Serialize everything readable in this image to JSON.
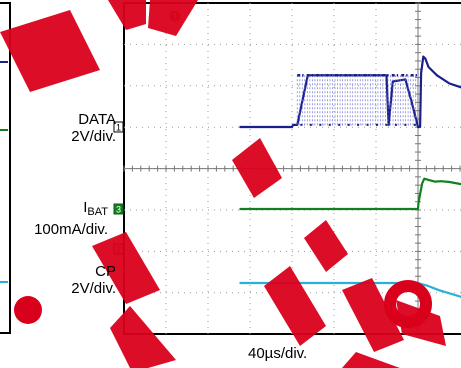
{
  "chart_data": {
    "type": "line",
    "title": "",
    "xlabel": "40µs/div.",
    "xlim": [
      -260,
      160
    ],
    "x_unit": "µs",
    "trigger_marker": "T",
    "colors": {
      "grid": "#9a9a9a",
      "frame": "#000000",
      "watermark": "#d9001b"
    },
    "series": [
      {
        "label_line1": "DATA",
        "label_line2": "2V/div.",
        "channel": "1",
        "color": "#1a1f8a",
        "x": [
          -170,
          -120,
          -119,
          -115,
          -105,
          -30,
          -28,
          -24,
          -12,
          -6,
          0,
          2,
          3,
          5,
          7,
          10,
          14,
          18,
          30,
          60,
          80,
          120,
          160
        ],
        "y": [
          0,
          0,
          0.1,
          0.1,
          2.5,
          2.5,
          0.1,
          2.2,
          2.3,
          1.2,
          0,
          0,
          2.6,
          3.4,
          3.3,
          2.9,
          2.7,
          2.5,
          2.1,
          1.6,
          1.35,
          1.05,
          1.0
        ]
      },
      {
        "label_line1": "I",
        "label_sub": "BAT",
        "label_line2": "100mA/div.",
        "channel": "3",
        "color": "#12801e",
        "x": [
          -170,
          -30,
          0,
          0.5,
          2,
          4,
          6,
          10,
          16,
          22,
          30,
          45,
          60,
          80,
          100,
          120,
          160
        ],
        "y": [
          0,
          0,
          0,
          1.5,
          3.6,
          6.2,
          7.3,
          7.0,
          6.6,
          6.7,
          6.5,
          5.8,
          5.3,
          5.0,
          4.8,
          4.75,
          4.75
        ]
      },
      {
        "label_line1": "CP",
        "label_line2": "2V/div.",
        "channel": "2",
        "color": "#2ab0d8",
        "x": [
          -170,
          -5,
          0,
          10,
          20,
          40,
          60,
          80,
          100,
          120,
          160
        ],
        "y": [
          0,
          0,
          0,
          -0.15,
          -0.35,
          -0.65,
          -0.85,
          -0.95,
          -1.0,
          -1.0,
          -1.02
        ]
      }
    ],
    "data_burst": {
      "x_start": -115,
      "x_end": 0,
      "high": 2.5,
      "low": 0.1,
      "color": "#6b6fd8"
    }
  }
}
